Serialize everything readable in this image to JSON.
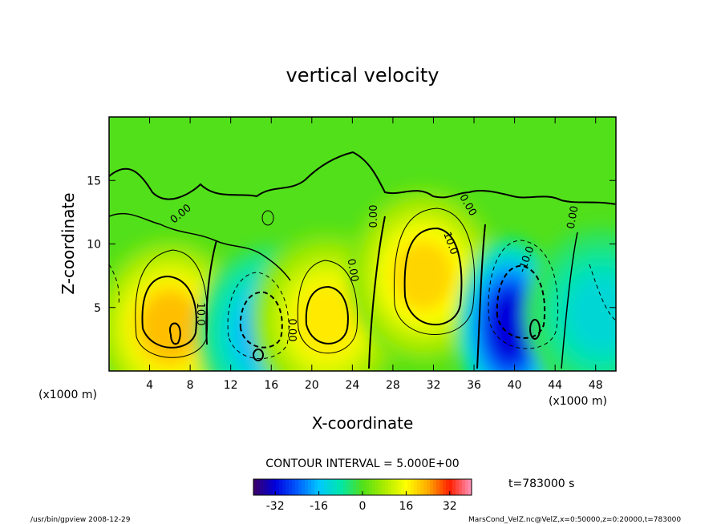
{
  "chart_data": {
    "type": "heatmap",
    "title": "vertical velocity",
    "xlabel": "X-coordinate",
    "ylabel": "Z-coordinate",
    "x_units_left": "(x1000 m)",
    "x_units_right": "(x1000 m)",
    "xlim": [
      0,
      50
    ],
    "ylim": [
      0,
      20
    ],
    "x_ticks": [
      4,
      8,
      12,
      16,
      20,
      24,
      28,
      32,
      36,
      40,
      44,
      48
    ],
    "y_ticks": [
      5,
      10,
      15
    ],
    "contour_interval_text": "CONTOUR INTERVAL = 5.000E+00",
    "contour_labels": [
      "10.0",
      "0.00",
      "0.00",
      "0.00",
      "10.0",
      "0.00",
      "0.00",
      "-10.0",
      "0.00"
    ],
    "colorbar": {
      "ticks": [
        -32,
        -16,
        0,
        16,
        32
      ],
      "range": [
        -40,
        40
      ],
      "colormap": "rainbow"
    },
    "cells": [
      {
        "label": "updraft",
        "x": 6,
        "z": 3.5,
        "w": 22
      },
      {
        "label": "downdraft",
        "x": 16,
        "z": 3,
        "w": -18
      },
      {
        "label": "updraft",
        "x": 21.5,
        "z": 4,
        "w": 18
      },
      {
        "label": "updraft",
        "x": 31,
        "z": 7.5,
        "w": 20
      },
      {
        "label": "downdraft",
        "x": 39.5,
        "z": 3.5,
        "w": -32
      },
      {
        "label": "downdraft",
        "x": 48.5,
        "z": 4.5,
        "w": -12
      }
    ],
    "time_label": "t=783000 s"
  },
  "footer": {
    "left": "/usr/bin/gpview   2008-12-29",
    "right": "MarsCond_VelZ.nc@VelZ,x=0:50000,z=0:20000,t=783000"
  }
}
